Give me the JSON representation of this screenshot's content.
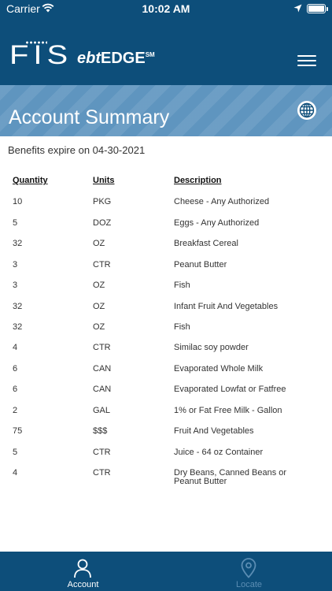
{
  "status_bar": {
    "carrier": "Carrier",
    "time": "10:02 AM",
    "icons": [
      "wifi-icon",
      "location-arrow-icon",
      "battery-icon"
    ]
  },
  "header": {
    "logo_fis": "FIS",
    "logo_ebt_prefix": "ebt",
    "logo_ebt_brand": "EDGE",
    "logo_ebt_mark": "SM",
    "menu_icon": "hamburger-menu-icon",
    "background_color": "#0d4e7a"
  },
  "banner": {
    "title": "Account Summary",
    "globe_icon": "globe-icon",
    "background_color": "#5f95bf"
  },
  "expiry_text": "Benefits expire on 04-30-2021",
  "table": {
    "headers": {
      "quantity": "Quantity",
      "units": "Units",
      "description": "Description"
    },
    "rows": [
      {
        "quantity": "10",
        "units": "PKG",
        "description": "Cheese - Any Authorized"
      },
      {
        "quantity": "5",
        "units": "DOZ",
        "description": "Eggs - Any Authorized"
      },
      {
        "quantity": "32",
        "units": "OZ",
        "description": "Breakfast Cereal"
      },
      {
        "quantity": "3",
        "units": "CTR",
        "description": "Peanut Butter"
      },
      {
        "quantity": "3",
        "units": "OZ",
        "description": "Fish"
      },
      {
        "quantity": "32",
        "units": "OZ",
        "description": "Infant Fruit And Vegetables"
      },
      {
        "quantity": "32",
        "units": "OZ",
        "description": "Fish"
      },
      {
        "quantity": "4",
        "units": "CTR",
        "description": "Similac soy powder"
      },
      {
        "quantity": "6",
        "units": "CAN",
        "description": "Evaporated Whole Milk"
      },
      {
        "quantity": "6",
        "units": "CAN",
        "description": "Evaporated Lowfat or Fatfree"
      },
      {
        "quantity": "2",
        "units": "GAL",
        "description": "1% or Fat Free Milk - Gallon"
      },
      {
        "quantity": "75",
        "units": "$$$",
        "description": "Fruit And Vegetables"
      },
      {
        "quantity": "5",
        "units": "CTR",
        "description": "Juice - 64 oz Container"
      },
      {
        "quantity": "4",
        "units": "CTR",
        "description": "Dry Beans, Canned Beans or Peanut Butter"
      }
    ]
  },
  "tab_bar": {
    "tabs": [
      {
        "label": "Account",
        "icon": "person-icon",
        "active": true
      },
      {
        "label": "Locate",
        "icon": "map-pin-icon",
        "active": false
      }
    ],
    "active_color": "#ffffff",
    "inactive_color": "#5b8db3"
  }
}
